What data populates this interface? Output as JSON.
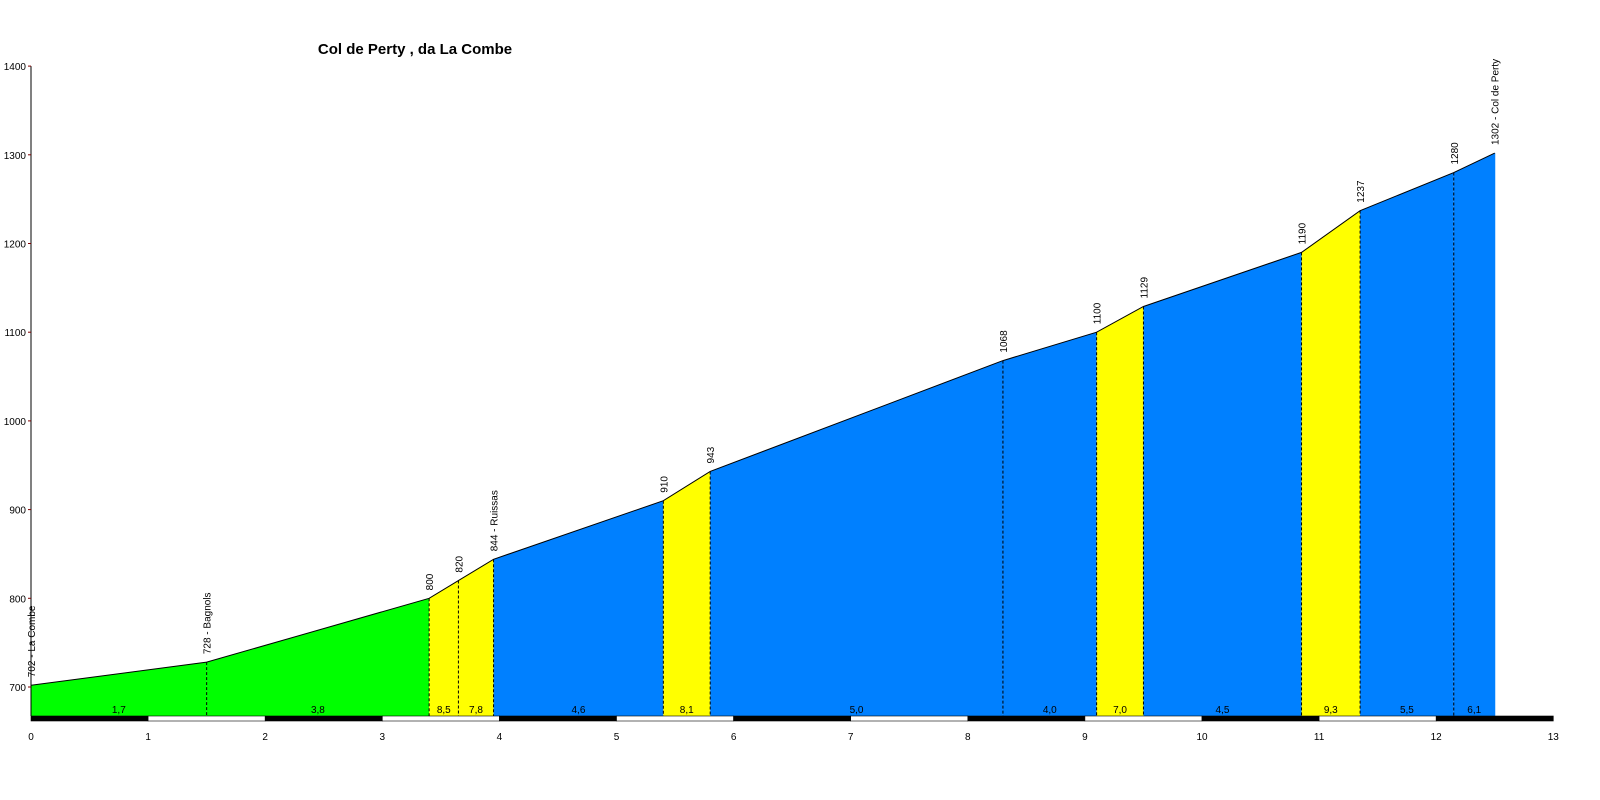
{
  "chart_data": {
    "type": "area",
    "title": "Col de Perty , da La Combe",
    "xlim": [
      0,
      13
    ],
    "ylim": [
      660,
      1400
    ],
    "x_ticks": [
      0,
      1,
      2,
      3,
      4,
      5,
      6,
      7,
      8,
      9,
      10,
      11,
      12,
      13
    ],
    "y_ticks": [
      700,
      800,
      900,
      1000,
      1100,
      1200,
      1300,
      1400
    ],
    "grid": false,
    "legend": "none",
    "profile": [
      {
        "x": 0.0,
        "y": 702,
        "label": "702 - La Combe"
      },
      {
        "x": 1.5,
        "y": 728,
        "label": "728 - Bagnols"
      },
      {
        "x": 3.4,
        "y": 800,
        "label": "800"
      },
      {
        "x": 3.65,
        "y": 820,
        "label": "820"
      },
      {
        "x": 3.95,
        "y": 844,
        "label": "844 - Ruissas"
      },
      {
        "x": 5.4,
        "y": 910,
        "label": "910"
      },
      {
        "x": 5.8,
        "y": 943,
        "label": "943"
      },
      {
        "x": 8.3,
        "y": 1068,
        "label": "1068"
      },
      {
        "x": 9.1,
        "y": 1100,
        "label": "1100"
      },
      {
        "x": 9.5,
        "y": 1129,
        "label": "1129"
      },
      {
        "x": 10.85,
        "y": 1190,
        "label": "1190"
      },
      {
        "x": 11.35,
        "y": 1237,
        "label": "1237"
      },
      {
        "x": 12.15,
        "y": 1280,
        "label": "1280"
      },
      {
        "x": 12.5,
        "y": 1302,
        "label": "1302 - Col de Perty"
      }
    ],
    "segments": [
      {
        "from": 0.0,
        "to": 1.5,
        "gradient": "1,7",
        "color": "#00ff00"
      },
      {
        "from": 1.5,
        "to": 3.4,
        "gradient": "3,8",
        "color": "#00ff00"
      },
      {
        "from": 3.4,
        "to": 3.65,
        "gradient": "8,5",
        "color": "#ffff00"
      },
      {
        "from": 3.65,
        "to": 3.95,
        "gradient": "7,8",
        "color": "#ffff00"
      },
      {
        "from": 3.95,
        "to": 5.4,
        "gradient": "4,6",
        "color": "#0080ff"
      },
      {
        "from": 5.4,
        "to": 5.8,
        "gradient": "8,1",
        "color": "#ffff00"
      },
      {
        "from": 5.8,
        "to": 8.3,
        "gradient": "5,0",
        "color": "#0080ff"
      },
      {
        "from": 8.3,
        "to": 9.1,
        "gradient": "4,0",
        "color": "#0080ff"
      },
      {
        "from": 9.1,
        "to": 9.5,
        "gradient": "7,0",
        "color": "#ffff00"
      },
      {
        "from": 9.5,
        "to": 10.85,
        "gradient": "4,5",
        "color": "#0080ff"
      },
      {
        "from": 10.85,
        "to": 11.35,
        "gradient": "9,3",
        "color": "#ffff00"
      },
      {
        "from": 11.35,
        "to": 12.15,
        "gradient": "5,5",
        "color": "#0080ff"
      },
      {
        "from": 12.15,
        "to": 12.5,
        "gradient": "6,1",
        "color": "#0080ff"
      }
    ],
    "colors": {
      "easy": "#00ff00",
      "steep": "#ffff00",
      "moderate": "#0080ff",
      "axis": "#000000",
      "tick": "#800000"
    }
  }
}
